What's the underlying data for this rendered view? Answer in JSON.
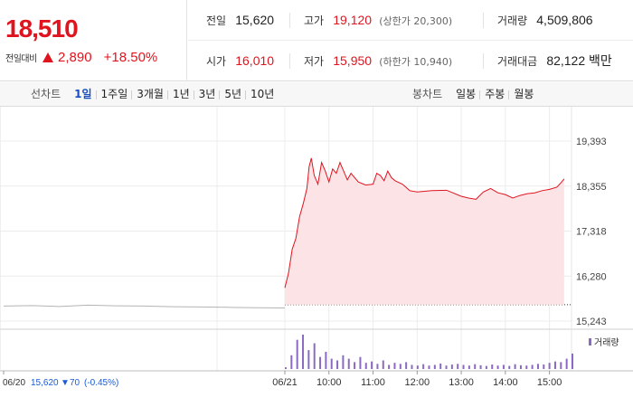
{
  "quote": {
    "current_price": "18,510",
    "change_label": "전일대비",
    "change_amount": "2,890",
    "change_percent": "+18.50%",
    "colors": {
      "up": "#e0141f",
      "down": "#1a5bd6",
      "flat": "#666666"
    }
  },
  "stats": {
    "prev_close": {
      "label": "전일",
      "value": "15,620"
    },
    "high": {
      "label": "고가",
      "value": "19,120",
      "sub": "(상한가 20,300)"
    },
    "volume": {
      "label": "거래량",
      "value": "4,509,806"
    },
    "open": {
      "label": "시가",
      "value": "16,010"
    },
    "low": {
      "label": "저가",
      "value": "15,950",
      "sub": "(하한가 10,940)"
    },
    "trade_value": {
      "label": "거래대금",
      "value": "82,122 백만"
    }
  },
  "tabs": {
    "line_title": "선차트",
    "line_tabs": [
      "1일",
      "1주일",
      "3개월",
      "1년",
      "3년",
      "5년",
      "10년"
    ],
    "line_active": "1일",
    "candle_title": "봉차트",
    "candle_tabs": [
      "일봉",
      "주봉",
      "월봉"
    ]
  },
  "chart_data": {
    "type": "line",
    "y_ticks": [
      "19,393",
      "18,355",
      "17,318",
      "16,280",
      "15,243"
    ],
    "ylim": [
      15243,
      19393
    ],
    "x_ticks": [
      "06/20",
      "06/21",
      "10:00",
      "11:00",
      "12:00",
      "13:00",
      "14:00",
      "15:00"
    ],
    "grid": true,
    "volume_legend": "거래량",
    "previous_day": {
      "date": "06/20",
      "close": "15,620",
      "change": "70",
      "change_pct": "(-0.45%)",
      "series": [
        [
          0,
          15590
        ],
        [
          0.1,
          15600
        ],
        [
          0.2,
          15580
        ],
        [
          0.3,
          15610
        ],
        [
          0.4,
          15595
        ],
        [
          0.5,
          15590
        ],
        [
          0.6,
          15575
        ],
        [
          0.7,
          15570
        ],
        [
          0.8,
          15560
        ],
        [
          0.9,
          15550
        ],
        [
          1.0,
          15545
        ]
      ]
    },
    "intraday": {
      "date": "06/21",
      "series": [
        [
          "09:00",
          16010
        ],
        [
          "09:05",
          16350
        ],
        [
          "09:10",
          16900
        ],
        [
          "09:15",
          17150
        ],
        [
          "09:20",
          17650
        ],
        [
          "09:25",
          17950
        ],
        [
          "09:30",
          18300
        ],
        [
          "09:33",
          18800
        ],
        [
          "09:36",
          19000
        ],
        [
          "09:40",
          18600
        ],
        [
          "09:45",
          18400
        ],
        [
          "09:50",
          18900
        ],
        [
          "09:55",
          18700
        ],
        [
          "10:00",
          18450
        ],
        [
          "10:05",
          18750
        ],
        [
          "10:10",
          18650
        ],
        [
          "10:15",
          18900
        ],
        [
          "10:20",
          18700
        ],
        [
          "10:25",
          18500
        ],
        [
          "10:30",
          18650
        ],
        [
          "10:40",
          18450
        ],
        [
          "10:50",
          18380
        ],
        [
          "11:00",
          18400
        ],
        [
          "11:05",
          18650
        ],
        [
          "11:10",
          18600
        ],
        [
          "11:15",
          18480
        ],
        [
          "11:20",
          18700
        ],
        [
          "11:25",
          18550
        ],
        [
          "11:30",
          18480
        ],
        [
          "11:40",
          18400
        ],
        [
          "11:50",
          18250
        ],
        [
          "12:00",
          18220
        ],
        [
          "12:20",
          18250
        ],
        [
          "12:40",
          18260
        ],
        [
          "13:00",
          18120
        ],
        [
          "13:10",
          18080
        ],
        [
          "13:20",
          18050
        ],
        [
          "13:30",
          18220
        ],
        [
          "13:40",
          18300
        ],
        [
          "13:50",
          18200
        ],
        [
          "14:00",
          18160
        ],
        [
          "14:10",
          18080
        ],
        [
          "14:20",
          18140
        ],
        [
          "14:30",
          18180
        ],
        [
          "14:40",
          18200
        ],
        [
          "14:50",
          18250
        ],
        [
          "15:00",
          18280
        ],
        [
          "15:10",
          18330
        ],
        [
          "15:15",
          18420
        ],
        [
          "15:20",
          18520
        ]
      ]
    },
    "previous_close_value": 15620,
    "volume_relative": [
      [
        0.0,
        0.05
      ],
      [
        0.02,
        0.4
      ],
      [
        0.04,
        0.85
      ],
      [
        0.06,
        1.0
      ],
      [
        0.08,
        0.55
      ],
      [
        0.1,
        0.75
      ],
      [
        0.12,
        0.35
      ],
      [
        0.14,
        0.5
      ],
      [
        0.16,
        0.3
      ],
      [
        0.18,
        0.25
      ],
      [
        0.2,
        0.4
      ],
      [
        0.22,
        0.3
      ],
      [
        0.24,
        0.2
      ],
      [
        0.26,
        0.35
      ],
      [
        0.28,
        0.18
      ],
      [
        0.3,
        0.22
      ],
      [
        0.32,
        0.15
      ],
      [
        0.34,
        0.25
      ],
      [
        0.36,
        0.12
      ],
      [
        0.38,
        0.18
      ],
      [
        0.4,
        0.15
      ],
      [
        0.42,
        0.2
      ],
      [
        0.44,
        0.12
      ],
      [
        0.46,
        0.1
      ],
      [
        0.48,
        0.14
      ],
      [
        0.5,
        0.1
      ],
      [
        0.52,
        0.12
      ],
      [
        0.54,
        0.16
      ],
      [
        0.56,
        0.1
      ],
      [
        0.58,
        0.13
      ],
      [
        0.6,
        0.15
      ],
      [
        0.62,
        0.12
      ],
      [
        0.64,
        0.1
      ],
      [
        0.66,
        0.14
      ],
      [
        0.68,
        0.11
      ],
      [
        0.7,
        0.09
      ],
      [
        0.72,
        0.13
      ],
      [
        0.74,
        0.1
      ],
      [
        0.76,
        0.12
      ],
      [
        0.78,
        0.09
      ],
      [
        0.8,
        0.14
      ],
      [
        0.82,
        0.11
      ],
      [
        0.84,
        0.1
      ],
      [
        0.86,
        0.12
      ],
      [
        0.88,
        0.15
      ],
      [
        0.9,
        0.13
      ],
      [
        0.92,
        0.18
      ],
      [
        0.94,
        0.22
      ],
      [
        0.96,
        0.2
      ],
      [
        0.98,
        0.3
      ],
      [
        1.0,
        0.45
      ]
    ]
  }
}
